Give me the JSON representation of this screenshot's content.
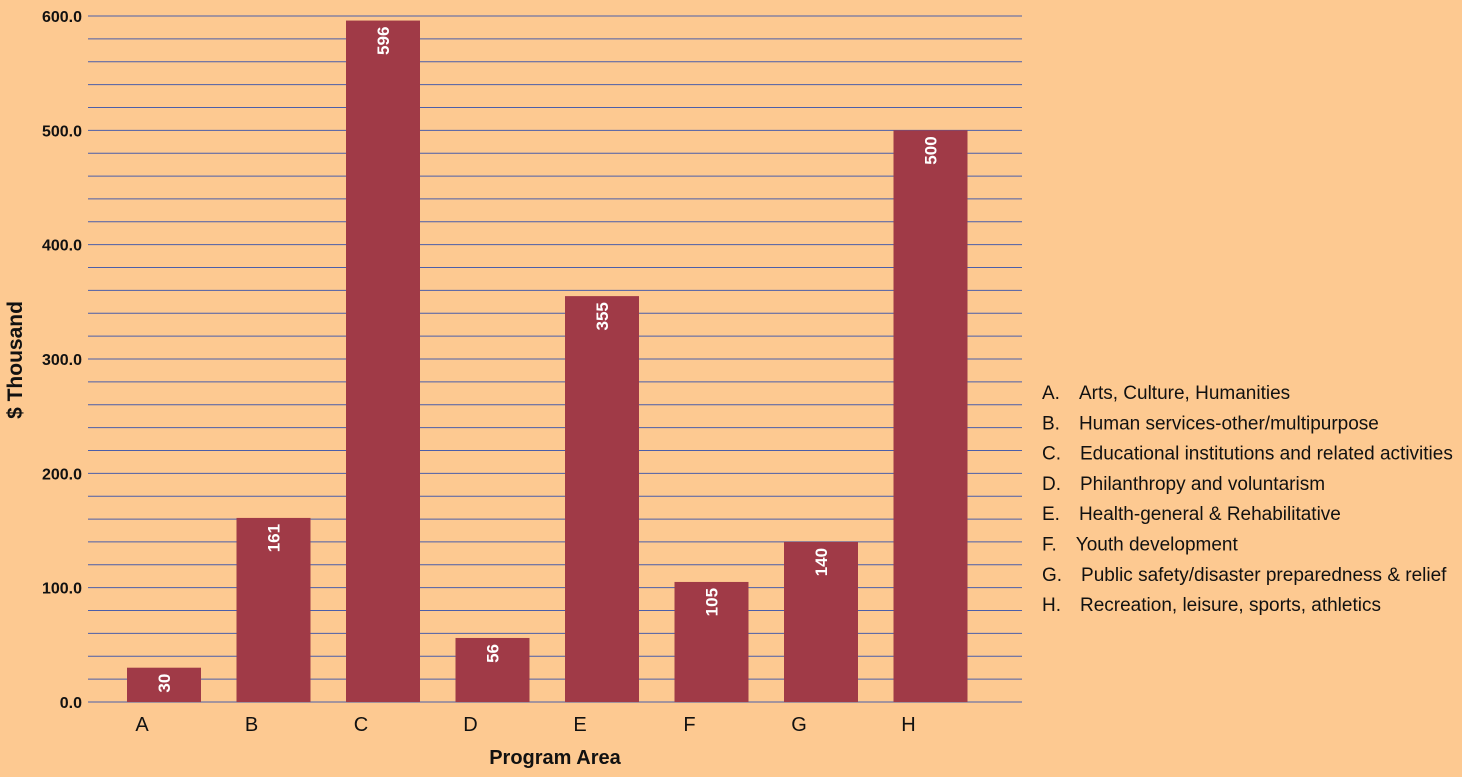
{
  "chart_data": {
    "type": "bar",
    "title": "",
    "xlabel": "Program Area",
    "ylabel": "$ Thousand",
    "categories": [
      "A",
      "B",
      "C",
      "D",
      "E",
      "F",
      "G",
      "H"
    ],
    "values": [
      30,
      161,
      596,
      56,
      355,
      105,
      140,
      500
    ],
    "bar_labels": [
      "30",
      "161",
      "596",
      "56",
      "355",
      "105",
      "140",
      "500"
    ],
    "ylim": [
      0,
      600
    ],
    "yticks": [
      0,
      100,
      200,
      300,
      400,
      500,
      600
    ],
    "ytick_labels": [
      "0.0",
      "100.0",
      "200.0",
      "300.0",
      "400.0",
      "500.0",
      "600.0"
    ],
    "grid": true,
    "legend_position": "right",
    "legend": [
      "A. Arts, Culture, Humanities",
      "B. Human services-other/multipurpose",
      "C. Educational institutions and related activities",
      "D. Philanthropy and voluntarism",
      "E. Health-general & Rehabilitative",
      "F. Youth development",
      "G. Public safety/disaster preparedness & relief",
      "H. Recreation, leisure, sports, athletics"
    ],
    "colors": {
      "background": "#fdc991",
      "bar": "#a03a47",
      "gridline": "#4b5ea9",
      "bar_label": "#ffffff",
      "text": "#111111"
    }
  }
}
